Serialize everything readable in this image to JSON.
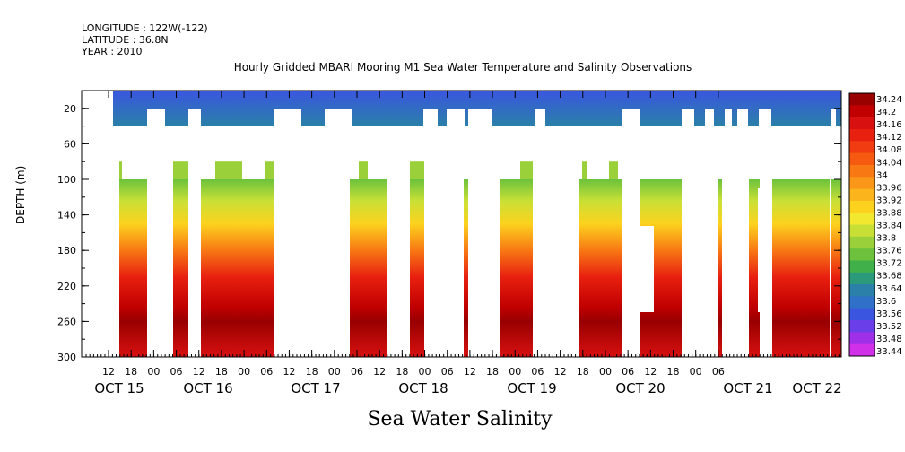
{
  "header": {
    "longitude": "LONGITUDE : 122W(-122)",
    "latitude": "LATITUDE : 36.8N",
    "year": "YEAR : 2010"
  },
  "chart_data": {
    "type": "heatmap",
    "title": "Hourly Gridded MBARI Mooring M1 Sea Water Temperature and Salinity Observations",
    "ylabel": "DEPTH (m)",
    "footer": "Sea Water Salinity",
    "y_ticks": [
      20,
      60,
      100,
      140,
      180,
      220,
      260,
      300
    ],
    "ylim": [
      300,
      0
    ],
    "x_hour_ticks": [
      "12",
      "18",
      "00",
      "06",
      "12",
      "18",
      "00",
      "06",
      "12",
      "18",
      "00",
      "06",
      "12",
      "18",
      "00",
      "06",
      "12",
      "18",
      "00",
      "06",
      "12",
      "18",
      "00",
      "06",
      "12",
      "18",
      "00",
      "06"
    ],
    "x_date_labels": [
      "OCT 15",
      "OCT 16",
      "OCT 17",
      "OCT 18",
      "OCT 19",
      "OCT 20",
      "OCT 21",
      "OCT 22"
    ],
    "colorbar": {
      "labels": [
        "34.24",
        "34.2",
        "34.16",
        "34.12",
        "34.08",
        "34.04",
        "34",
        "33.96",
        "33.92",
        "33.88",
        "33.84",
        "33.8",
        "33.76",
        "33.72",
        "33.68",
        "33.64",
        "33.6",
        "33.56",
        "33.52",
        "33.48",
        "33.44"
      ],
      "colors": [
        "#990000",
        "#c00000",
        "#d81010",
        "#e82010",
        "#f03c10",
        "#f55a10",
        "#f87814",
        "#fa9618",
        "#fbb41c",
        "#fcd21e",
        "#f2e830",
        "#c8e036",
        "#9ad13a",
        "#6cc23c",
        "#40b04a",
        "#2a9a7a",
        "#2a80a8",
        "#3070c8",
        "#3a56e0",
        "#6a3ee8",
        "#a030e8",
        "#d030e8"
      ]
    },
    "surface_band": {
      "depth_range": [
        0,
        40
      ],
      "salinity_range": [
        33.5,
        33.62
      ]
    },
    "deep_band": {
      "depth_range": [
        80,
        300
      ],
      "salinity_range": [
        33.78,
        34.22
      ]
    }
  }
}
